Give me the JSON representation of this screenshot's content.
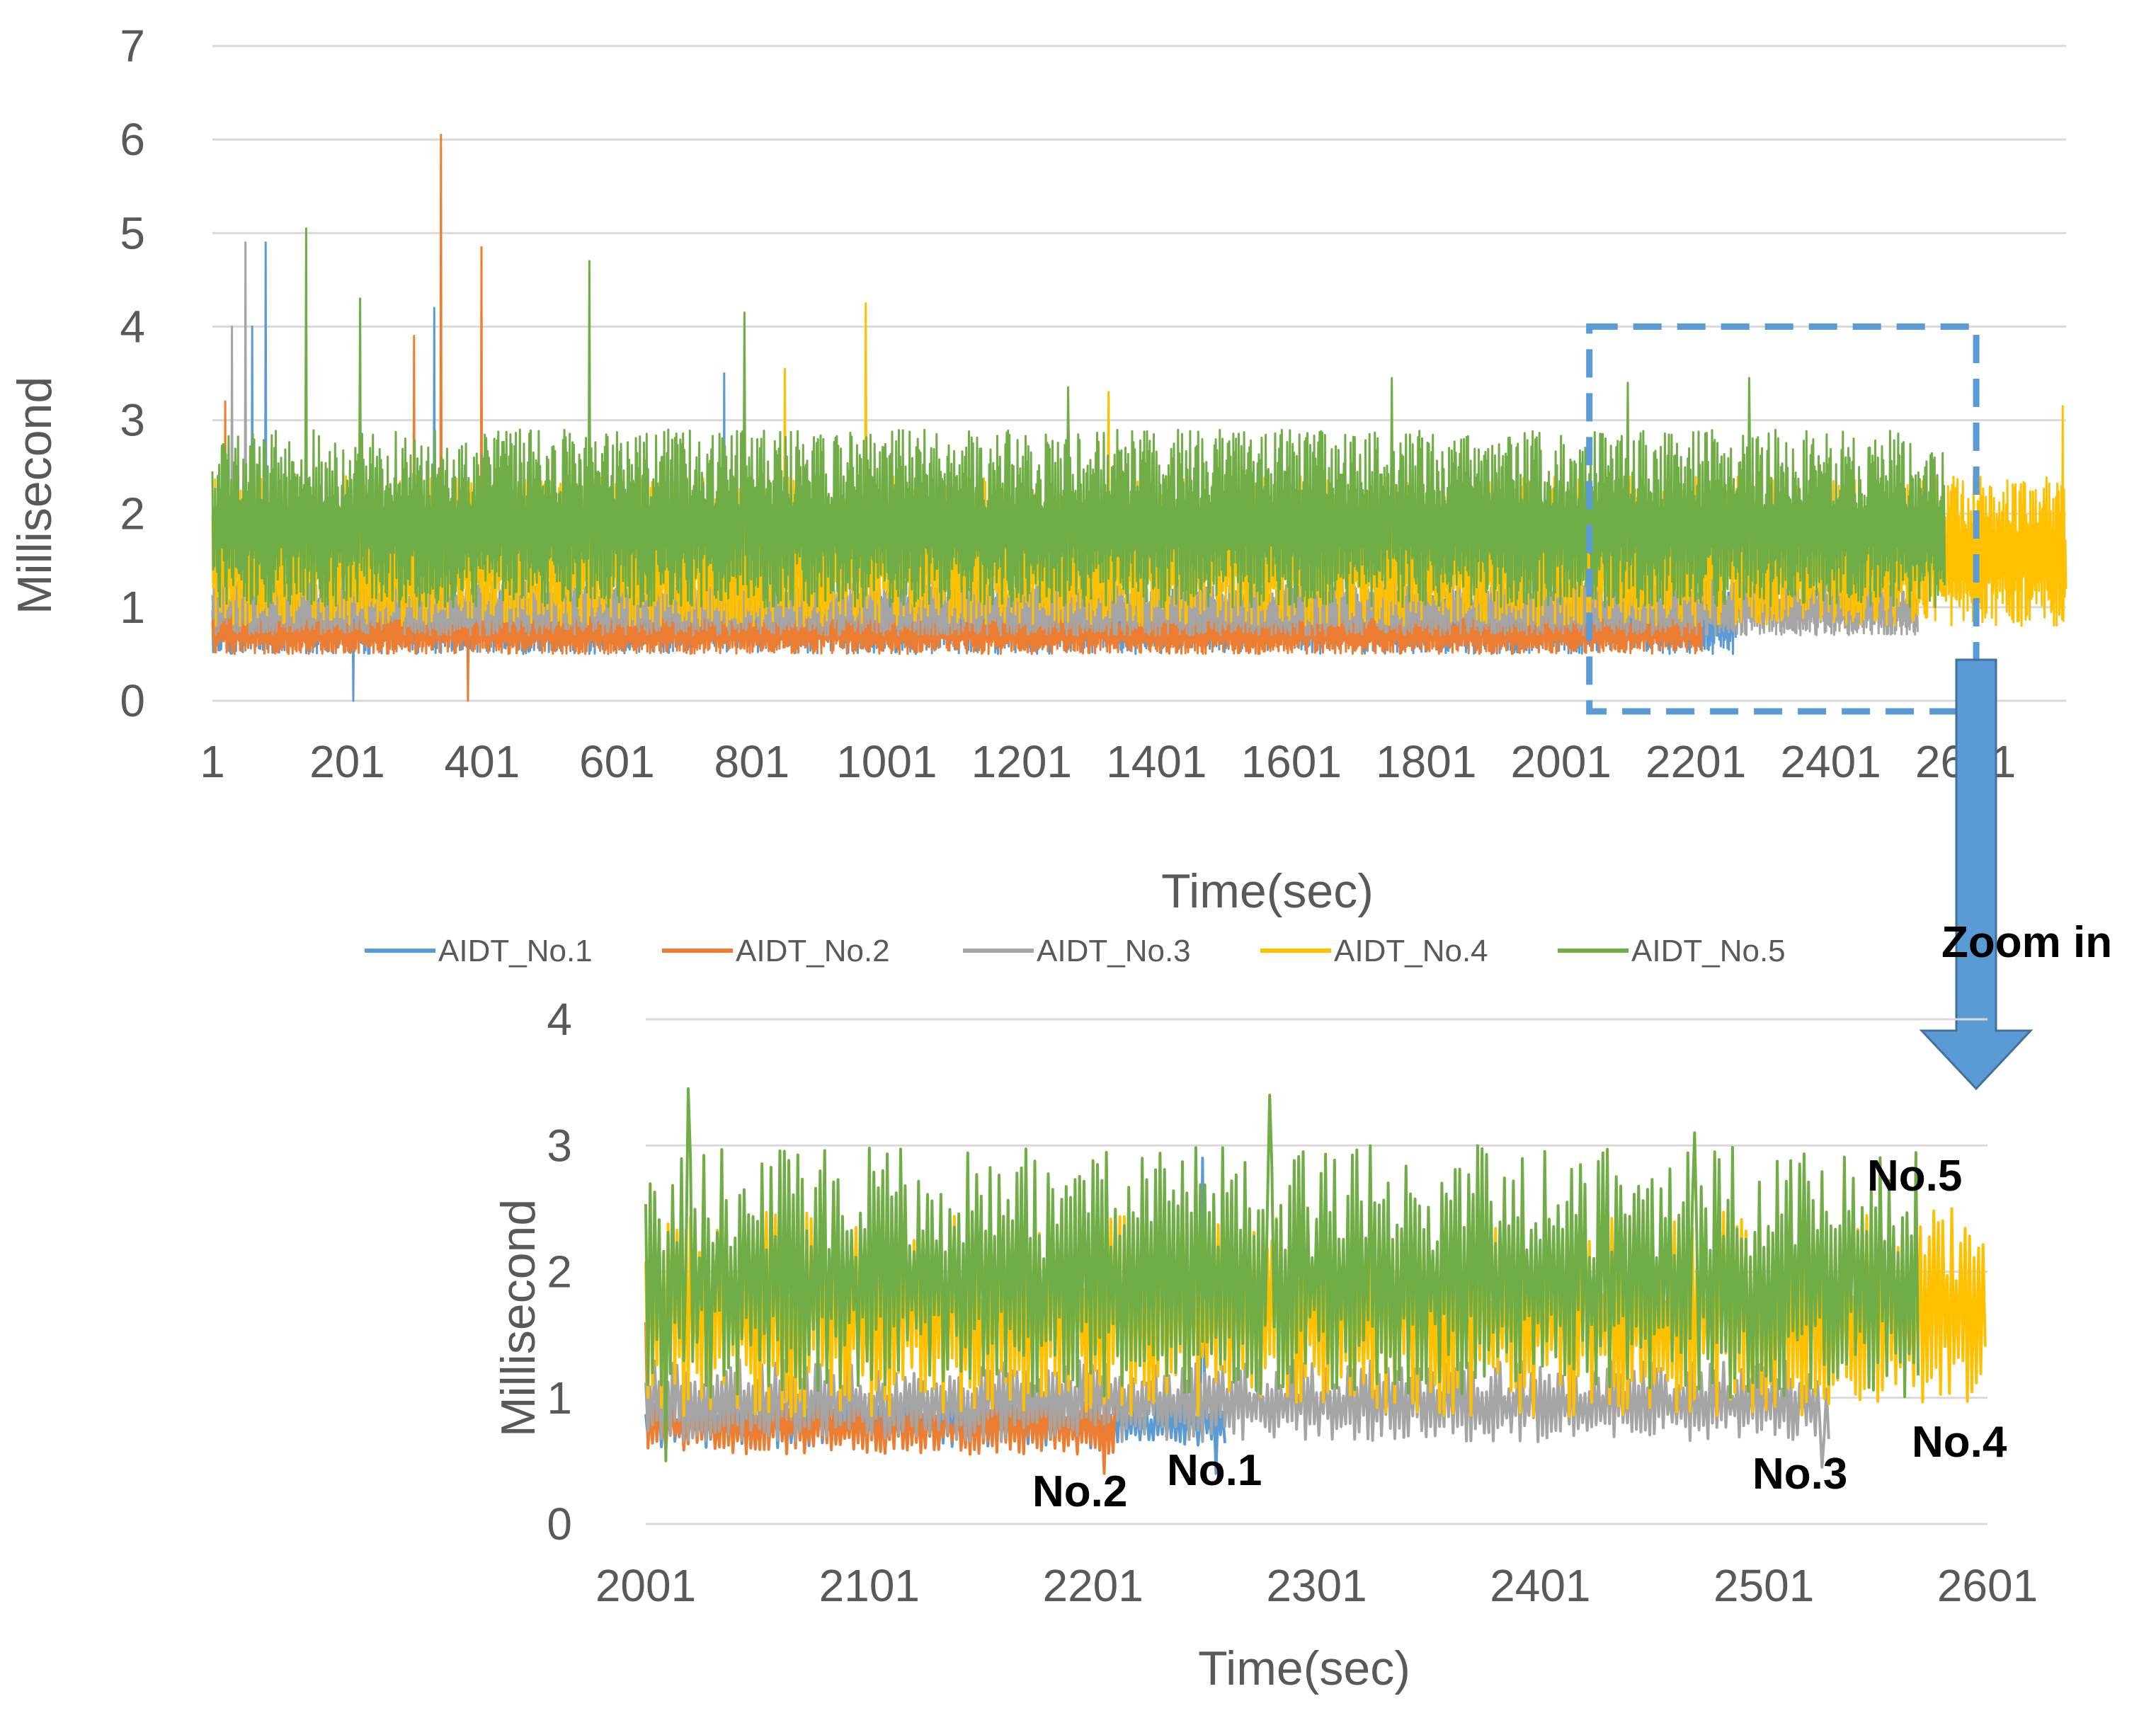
{
  "chart_data": [
    {
      "id": "overview",
      "type": "line",
      "title": "",
      "xlabel": "Time(sec)",
      "ylabel": "Millisecond",
      "xlim": [
        1,
        2750
      ],
      "ylim": [
        0,
        7
      ],
      "yticks": [
        "0",
        "1",
        "2",
        "3",
        "4",
        "5",
        "6",
        "7"
      ],
      "xtick_labels": [
        "1",
        "201",
        "401",
        "601",
        "801",
        "1001",
        "1201",
        "1401",
        "1601",
        "1801",
        "2001",
        "2201",
        "2401",
        "2601"
      ],
      "grid": true,
      "legend_position": "bottom",
      "zoom_region": {
        "x": [
          2001,
          2601
        ],
        "y": [
          0,
          4
        ]
      },
      "series": [
        {
          "name": "AIDT_No.1",
          "color": "#5B9BD5",
          "end": 2260,
          "range": [
            0.5,
            1.2
          ],
          "spikes": [
            [
              80,
              4.9
            ],
            [
              60,
              4.0
            ],
            [
              330,
              4.2
            ],
            [
              760,
              3.5
            ],
            [
              210,
              0.0
            ]
          ]
        },
        {
          "name": "AIDT_No.2",
          "color": "#ED7D31",
          "end": 2210,
          "range": [
            0.5,
            1.0
          ],
          "spikes": [
            [
              340,
              6.05
            ],
            [
              400,
              4.85
            ],
            [
              20,
              3.2
            ],
            [
              300,
              3.9
            ],
            [
              380,
              0.0
            ]
          ]
        },
        {
          "name": "AIDT_No.3",
          "color": "#A5A5A5",
          "end": 2530,
          "range": [
            0.7,
            1.3
          ],
          "spikes": [
            [
              50,
              4.9
            ],
            [
              30,
              4.0
            ],
            [
              220,
              3.9
            ]
          ]
        },
        {
          "name": "AIDT_No.4",
          "color": "#FFC000",
          "end": 2750,
          "range": [
            0.8,
            2.4
          ],
          "spikes": [
            [
              970,
              4.25
            ],
            [
              2745,
              3.15
            ],
            [
              850,
              3.55
            ],
            [
              1330,
              3.3
            ]
          ]
        },
        {
          "name": "AIDT_No.5",
          "color": "#70AD47",
          "end": 2570,
          "range": [
            1.0,
            2.9
          ],
          "spikes": [
            [
              140,
              5.05
            ],
            [
              560,
              4.7
            ],
            [
              220,
              4.3
            ],
            [
              790,
              4.15
            ],
            [
              1750,
              3.45
            ],
            [
              2280,
              3.45
            ],
            [
              2100,
              3.4
            ],
            [
              1270,
              3.35
            ],
            [
              0,
              0.1
            ]
          ]
        }
      ]
    },
    {
      "id": "zoom",
      "type": "line",
      "title": "",
      "xlabel": "Time(sec)",
      "ylabel": "Millisecond",
      "xlim": [
        2001,
        2601
      ],
      "ylim": [
        0,
        4
      ],
      "yticks": [
        "0",
        "1",
        "2",
        "3",
        "4"
      ],
      "xtick_labels": [
        "2001",
        "2101",
        "2201",
        "2301",
        "2401",
        "2501",
        "2601"
      ],
      "grid": true,
      "series": [
        {
          "name": "AIDT_No.1",
          "color": "#5B9BD5",
          "end": 2260,
          "range": [
            0.6,
            1.0
          ],
          "spikes": [
            [
              2250,
              2.9
            ],
            [
              2256,
              0.4
            ]
          ]
        },
        {
          "name": "AIDT_No.2",
          "color": "#ED7D31",
          "end": 2211,
          "range": [
            0.55,
            1.0
          ],
          "spikes": [
            [
              2001,
              1.6
            ],
            [
              2206,
              0.4
            ]
          ]
        },
        {
          "name": "AIDT_No.3",
          "color": "#A5A5A5",
          "end": 2530,
          "range": [
            0.65,
            1.3
          ],
          "spikes": [
            [
              2527,
              0.45
            ]
          ]
        },
        {
          "name": "AIDT_No.4",
          "color": "#FFC000",
          "end": 2600,
          "range": [
            0.85,
            2.5
          ],
          "spikes": [
            [
              2585,
              2.5
            ]
          ]
        },
        {
          "name": "AIDT_No.5",
          "color": "#70AD47",
          "end": 2570,
          "range": [
            1.0,
            3.0
          ],
          "spikes": [
            [
              2020,
              3.45
            ],
            [
              2280,
              3.4
            ],
            [
              2470,
              3.1
            ],
            [
              2010,
              0.5
            ]
          ]
        }
      ],
      "annotations": [
        {
          "label": "No.1",
          "series": "AIDT_No.1"
        },
        {
          "label": "No.2",
          "series": "AIDT_No.2"
        },
        {
          "label": "No.3",
          "series": "AIDT_No.3"
        },
        {
          "label": "No.4",
          "series": "AIDT_No.4"
        },
        {
          "label": "No.5",
          "series": "AIDT_No.5"
        }
      ]
    }
  ],
  "zoom_arrow": {
    "label": "Zoom in",
    "color": "#5B9BD5"
  },
  "legend": {
    "items": [
      "AIDT_No.1",
      "AIDT_No.2",
      "AIDT_No.3",
      "AIDT_No.4",
      "AIDT_No.5"
    ]
  }
}
